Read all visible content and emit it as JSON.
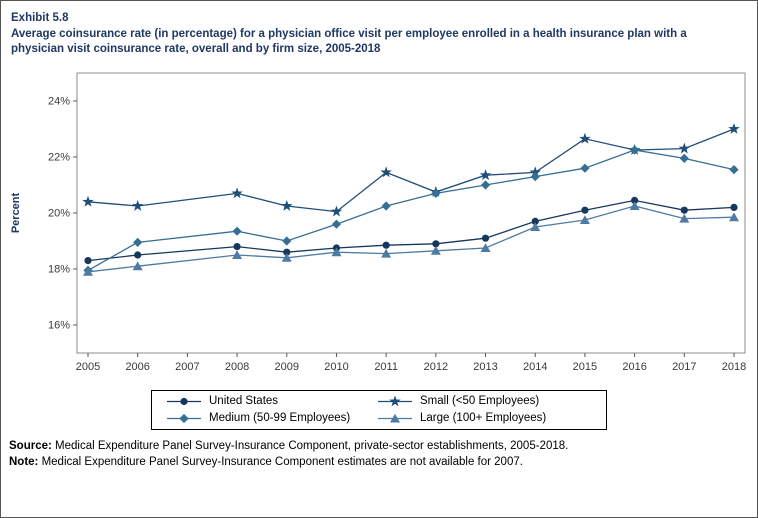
{
  "exhibit_label": "Exhibit 5.8",
  "title": "Average coinsurance rate (in percentage) for a physician office visit per employee enrolled in a health insurance plan with a physician visit coinsurance rate, overall and by firm size, 2005-2018",
  "chart_data": {
    "type": "line",
    "x": [
      2005,
      2006,
      2007,
      2008,
      2009,
      2010,
      2011,
      2012,
      2013,
      2014,
      2015,
      2016,
      2017,
      2018
    ],
    "xlabel": "",
    "ylabel": "Percent",
    "ylim": [
      15,
      25
    ],
    "yticks": [
      16,
      18,
      20,
      22,
      24
    ],
    "ytick_labels": [
      "16%",
      "18%",
      "20%",
      "22%",
      "24%"
    ],
    "grid": false,
    "legend_position": "bottom-center",
    "missing_data_years": [
      2007
    ],
    "series": [
      {
        "name": "United States",
        "marker": "circle",
        "color": "#17375e",
        "values": [
          18.3,
          18.5,
          null,
          18.8,
          18.6,
          18.75,
          18.85,
          18.9,
          19.1,
          19.7,
          20.1,
          20.45,
          20.1,
          20.2
        ]
      },
      {
        "name": "Small (<50 Employees)",
        "marker": "star",
        "color": "#1f4e79",
        "values": [
          20.4,
          20.25,
          null,
          20.7,
          20.25,
          20.05,
          21.45,
          20.75,
          21.35,
          21.45,
          22.65,
          22.25,
          22.3,
          23.0
        ]
      },
      {
        "name": "Medium (50-99 Employees)",
        "marker": "diamond",
        "color": "#366f94",
        "values": [
          17.95,
          18.95,
          null,
          19.35,
          19.0,
          19.6,
          20.25,
          20.7,
          21.0,
          21.3,
          21.6,
          22.25,
          21.95,
          21.55
        ]
      },
      {
        "name": "Large (100+ Employees)",
        "marker": "triangle",
        "color": "#4f7ba3",
        "values": [
          17.9,
          18.1,
          null,
          18.5,
          18.4,
          18.6,
          18.55,
          18.65,
          18.75,
          19.5,
          19.75,
          20.25,
          19.8,
          19.85
        ]
      }
    ]
  },
  "legend": {
    "items": [
      "United States",
      "Small (<50 Employees)",
      "Medium (50-99 Employees)",
      "Large (100+ Employees)"
    ]
  },
  "footer": {
    "source_label": "Source:",
    "source_text": " Medical Expenditure Panel Survey-Insurance Component, private-sector establishments, 2005-2018.",
    "note_label": "Note:",
    "note_text": " Medical Expenditure Panel Survey-Insurance Component estimates are not available for 2007."
  }
}
